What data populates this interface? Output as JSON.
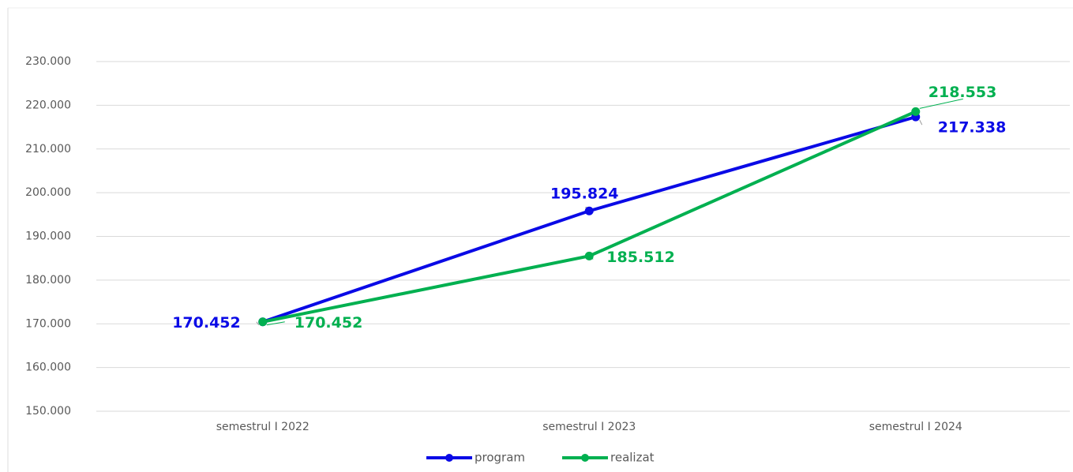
{
  "chart_data": {
    "type": "line",
    "categories": [
      "semestrul I 2022",
      "semestrul I 2023",
      "semestrul I 2024"
    ],
    "series": [
      {
        "name": "program",
        "color": "#0a0ae6",
        "values": [
          170452,
          195824,
          217338
        ],
        "value_labels": [
          "170.452",
          "195.824",
          "217.338"
        ]
      },
      {
        "name": "realizat",
        "color": "#00b050",
        "values": [
          170452,
          185512,
          218553
        ],
        "value_labels": [
          "170.452",
          "185.512",
          "218.553"
        ]
      }
    ],
    "ylim": [
      150000,
      230000
    ],
    "yticks": [
      {
        "value": 150000,
        "label": "150.000"
      },
      {
        "value": 160000,
        "label": "160.000"
      },
      {
        "value": 170000,
        "label": "170.000"
      },
      {
        "value": 180000,
        "label": "180.000"
      },
      {
        "value": 190000,
        "label": "190.000"
      },
      {
        "value": 200000,
        "label": "200.000"
      },
      {
        "value": 210000,
        "label": "210.000"
      },
      {
        "value": 220000,
        "label": "220.000"
      },
      {
        "value": 230000,
        "label": "230.000"
      }
    ],
    "grid": true,
    "legend": "bottom"
  }
}
